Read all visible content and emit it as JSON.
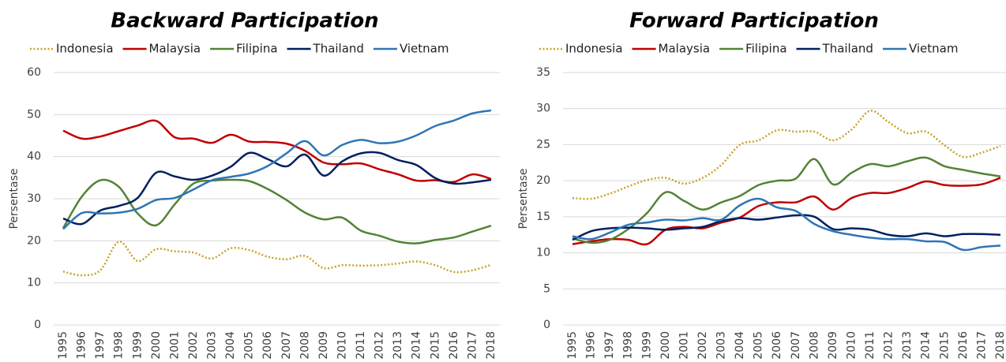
{
  "chart_data": [
    {
      "type": "line",
      "title": "Backward Participation",
      "y_label": "Persentase",
      "categories": [
        "1995",
        "1996",
        "1997",
        "1998",
        "1999",
        "2000",
        "2001",
        "2002",
        "2003",
        "2004",
        "2005",
        "2006",
        "2007",
        "2008",
        "2009",
        "2010",
        "2011",
        "2012",
        "2013",
        "2014",
        "2015",
        "2016",
        "2017",
        "2018"
      ],
      "ylim": [
        0,
        60
      ],
      "yticks": [
        0,
        10,
        20,
        30,
        40,
        50,
        60
      ],
      "grid": true,
      "legend": "top",
      "series": [
        {
          "name": "Indonesia",
          "color": "#c9a227",
          "line_style": "dotted",
          "values": [
            12.7,
            11.8,
            13,
            19.8,
            15.2,
            18,
            17.5,
            17.2,
            15.8,
            18.2,
            17.8,
            16.2,
            15.6,
            16.4,
            13.5,
            14.2,
            14.1,
            14.2,
            14.6,
            15.1,
            14.2,
            12.6,
            13,
            14.3
          ]
        },
        {
          "name": "Malaysia",
          "color": "#c00000",
          "values": [
            46.2,
            44.3,
            44.8,
            46.1,
            47.4,
            48.5,
            44.6,
            44.3,
            43.3,
            45.2,
            43.6,
            43.5,
            43.1,
            41.4,
            38.6,
            38.2,
            38.4,
            37,
            35.8,
            34.3,
            34.4,
            34,
            35.8,
            34.7
          ]
        },
        {
          "name": "Filipina",
          "color": "#548235",
          "values": [
            23,
            30.5,
            34.4,
            32.8,
            26.5,
            23.7,
            28.7,
            33.6,
            34.3,
            34.5,
            34.2,
            32.3,
            29.7,
            26.7,
            25.1,
            25.5,
            22.4,
            21.2,
            19.8,
            19.4,
            20.2,
            20.8,
            22.2,
            23.6
          ]
        },
        {
          "name": "Thailand",
          "color": "#002060",
          "values": [
            25.3,
            24,
            27.2,
            28.3,
            30.2,
            36.2,
            35.3,
            34.5,
            35.5,
            37.6,
            40.9,
            39.4,
            37.7,
            40.5,
            35.5,
            38.9,
            40.8,
            40.9,
            39.2,
            38,
            34.9,
            33.6,
            33.9,
            34.5
          ]
        },
        {
          "name": "Vietnam",
          "color": "#2e75b6",
          "values": [
            22.8,
            26.6,
            26.5,
            26.7,
            27.6,
            29.7,
            30.2,
            32.2,
            34.4,
            35.2,
            36,
            37.8,
            40.8,
            43.7,
            40.3,
            42.8,
            44,
            43.2,
            43.6,
            45.1,
            47.3,
            48.6,
            50.3,
            51
          ]
        }
      ]
    },
    {
      "type": "line",
      "title": "Forward Participation",
      "y_label": "Persentase",
      "categories": [
        "1995",
        "1996",
        "1997",
        "1998",
        "1999",
        "2000",
        "2001",
        "2002",
        "2003",
        "2004",
        "2005",
        "2006",
        "2007",
        "2008",
        "2009",
        "2010",
        "2011",
        "2012",
        "2013",
        "2014",
        "2015",
        "2016",
        "2017",
        "2018"
      ],
      "ylim": [
        0,
        35
      ],
      "yticks": [
        0,
        5,
        10,
        15,
        20,
        25,
        30,
        35
      ],
      "grid": true,
      "legend": "top",
      "series": [
        {
          "name": "Indonesia",
          "color": "#c9a227",
          "line_style": "dotted",
          "values": [
            17.6,
            17.5,
            18.2,
            19.2,
            20.1,
            20.4,
            19.6,
            20.4,
            22.2,
            25,
            25.6,
            27,
            26.8,
            26.8,
            25.6,
            27.1,
            29.7,
            28.1,
            26.6,
            26.8,
            24.9,
            23.3,
            23.9,
            24.8
          ]
        },
        {
          "name": "Malaysia",
          "color": "#c00000",
          "values": [
            11.2,
            11.6,
            11.9,
            11.8,
            11.2,
            13.2,
            13.6,
            13.4,
            14.2,
            14.9,
            16.5,
            17,
            17,
            17.8,
            16,
            17.6,
            18.3,
            18.3,
            19,
            19.9,
            19.4,
            19.3,
            19.5,
            20.4
          ]
        },
        {
          "name": "Filipina",
          "color": "#548235",
          "values": [
            12,
            11.4,
            11.8,
            13.3,
            15.5,
            18.4,
            17.2,
            16,
            17,
            17.9,
            19.4,
            20,
            20.3,
            23,
            19.5,
            21.1,
            22.3,
            22,
            22.7,
            23.2,
            22,
            21.5,
            21,
            20.6
          ]
        },
        {
          "name": "Thailand",
          "color": "#002060",
          "values": [
            11.8,
            13,
            13.4,
            13.5,
            13.4,
            13.2,
            13.4,
            13.6,
            14.4,
            14.8,
            14.6,
            14.9,
            15.2,
            15,
            13.3,
            13.4,
            13.2,
            12.5,
            12.3,
            12.7,
            12.3,
            12.6,
            12.6,
            12.5
          ]
        },
        {
          "name": "Vietnam",
          "color": "#2e75b6",
          "values": [
            12.3,
            11.9,
            12.8,
            13.9,
            14.2,
            14.6,
            14.5,
            14.8,
            14.6,
            16.6,
            17.5,
            16.3,
            15.8,
            14,
            13,
            12.5,
            12.1,
            11.9,
            11.9,
            11.6,
            11.5,
            10.4,
            10.8,
            11
          ]
        }
      ]
    }
  ]
}
